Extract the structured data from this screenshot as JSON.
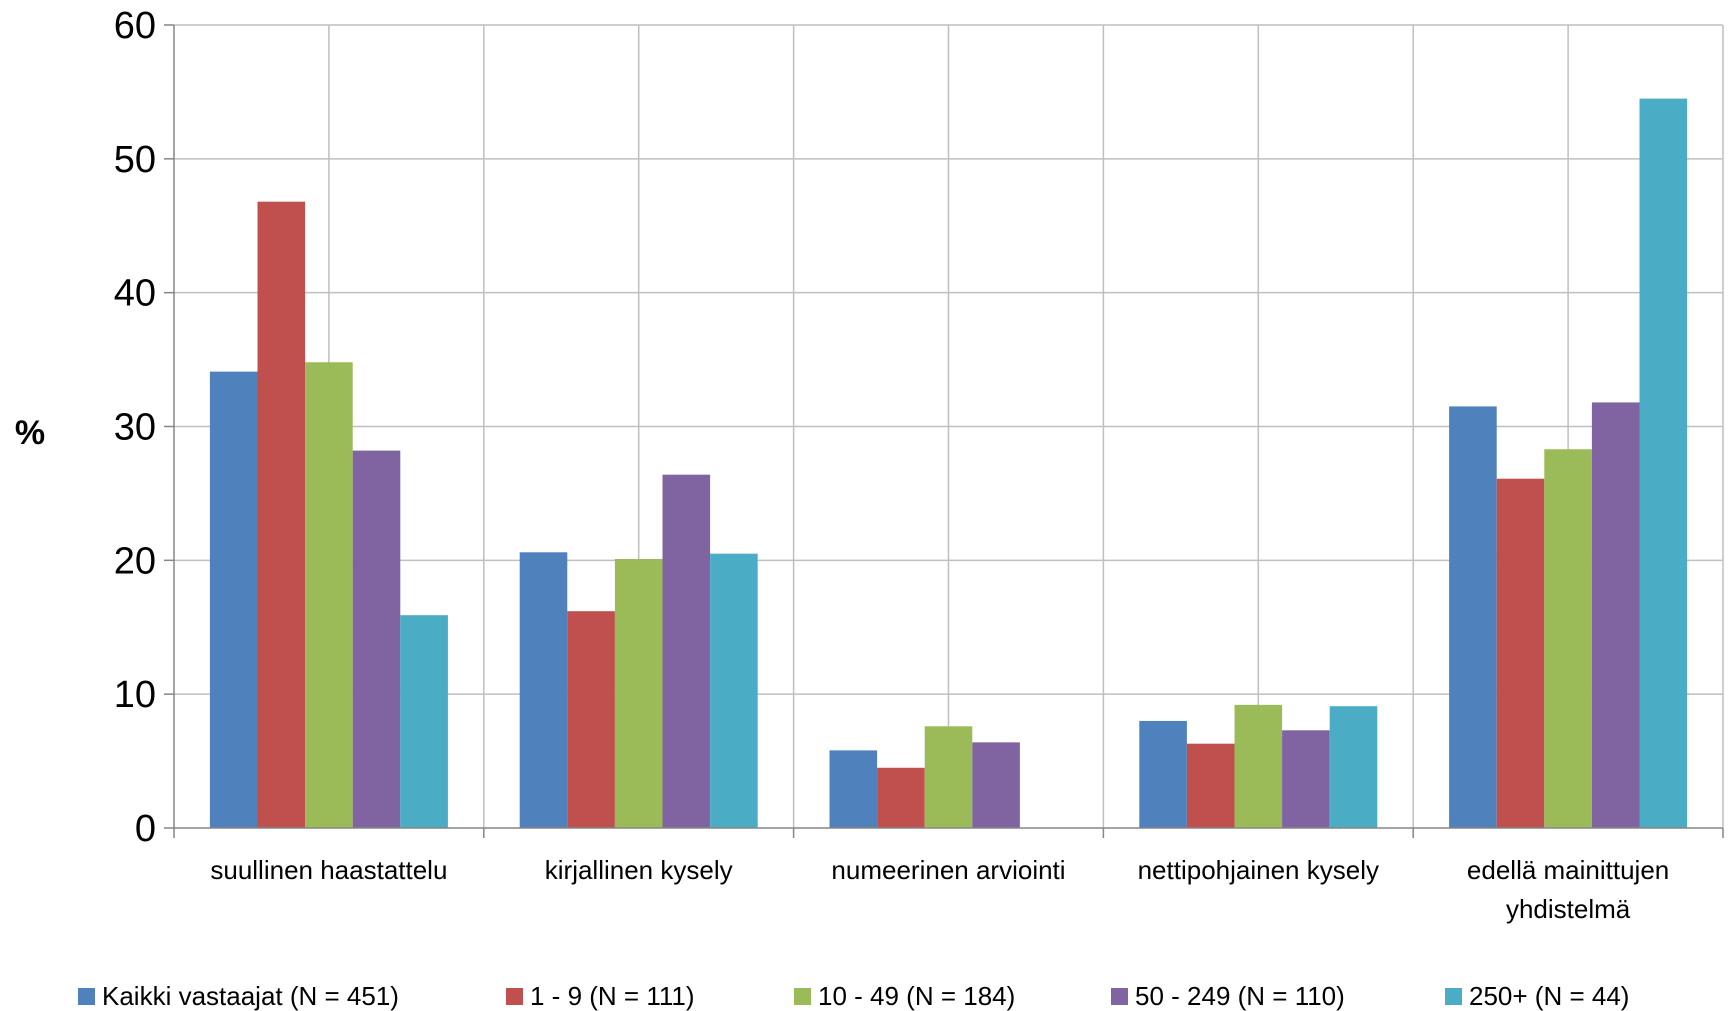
{
  "chart_data": {
    "type": "bar",
    "title": "",
    "xlabel": "",
    "ylabel": "%",
    "ylim": [
      0,
      60
    ],
    "yticks": [
      0,
      10,
      20,
      30,
      40,
      50,
      60
    ],
    "grid": true,
    "legend_position": "bottom",
    "categories": [
      [
        "suullinen haastattelu"
      ],
      [
        "kirjallinen kysely"
      ],
      [
        "numeerinen arviointi"
      ],
      [
        "nettipohjainen kysely"
      ],
      [
        "edellä mainittujen",
        "yhdistelmä"
      ]
    ],
    "series": [
      {
        "name": "Kaikki vastaajat (N = 451)",
        "color": "#4F81BD",
        "values": [
          34.1,
          20.6,
          5.8,
          8.0,
          31.5
        ]
      },
      {
        "name": "1 - 9 (N = 111)",
        "color": "#C0504D",
        "values": [
          46.8,
          16.2,
          4.5,
          6.3,
          26.1
        ]
      },
      {
        "name": "10 - 49 (N = 184)",
        "color": "#9BBB59",
        "values": [
          34.8,
          20.1,
          7.6,
          9.2,
          28.3
        ]
      },
      {
        "name": "50 - 249 (N = 110)",
        "color": "#8064A2",
        "values": [
          28.2,
          26.4,
          6.4,
          7.3,
          31.8
        ]
      },
      {
        "name": "250+ (N = 44)",
        "color": "#4BACC6",
        "values": [
          15.9,
          20.5,
          0,
          9.1,
          54.5
        ]
      }
    ]
  }
}
